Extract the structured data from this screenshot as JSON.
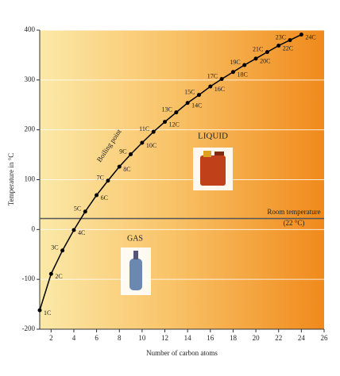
{
  "chart_data": {
    "type": "line",
    "title_y": "Temperature in °C",
    "title_x": "Number of carbon atoms",
    "x": [
      1,
      2,
      3,
      4,
      5,
      6,
      7,
      8,
      9,
      10,
      11,
      12,
      13,
      14,
      15,
      16,
      17,
      18,
      19,
      20,
      21,
      22,
      23,
      24
    ],
    "series": [
      {
        "name": "Boiling point",
        "color": "#000000",
        "values": [
          -162,
          -89,
          -42,
          -1,
          36,
          69,
          98,
          126,
          151,
          174,
          196,
          216,
          235,
          254,
          270,
          287,
          302,
          316,
          330,
          343,
          356,
          369,
          380,
          391
        ]
      }
    ],
    "point_labels": [
      "1C",
      "2C",
      "3C",
      "4C",
      "5C",
      "6C",
      "7C",
      "8C",
      "9C",
      "10C",
      "11C",
      "12C",
      "13C",
      "14C",
      "15C",
      "16C",
      "17C",
      "18C",
      "19C",
      "20C",
      "21C",
      "22C",
      "23C",
      "24C"
    ],
    "xlim": [
      1,
      26
    ],
    "ylim": [
      -200,
      400
    ],
    "xticks": [
      2,
      4,
      6,
      8,
      10,
      12,
      14,
      16,
      18,
      20,
      22,
      24,
      26
    ],
    "yticks": [
      -200,
      -100,
      0,
      100,
      200,
      300,
      400
    ],
    "grid": true,
    "reference_line": {
      "value": 22,
      "label": "Room temperature",
      "sublabel": "(22 °C)"
    },
    "region_labels": {
      "liquid": "LIQUID",
      "gas": "GAS"
    }
  }
}
